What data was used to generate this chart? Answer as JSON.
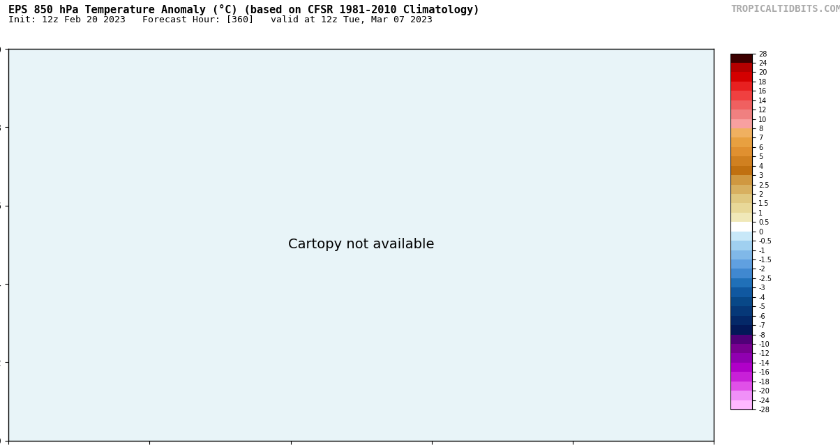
{
  "title_line1": "EPS 850 hPa Temperature Anomaly (°C) (based on CFSR 1981-2010 Climatology)",
  "title_line2": "Init: 12z Feb 20 2023   Forecast Hour: [360]   valid at 12z Tue, Mar 07 2023",
  "watermark": "TROPICALTIDBITS.COM",
  "colorbar_levels": [
    28,
    24,
    20,
    18,
    16,
    14,
    12,
    10,
    8,
    7,
    6,
    5,
    4,
    3,
    2.5,
    2,
    1.5,
    1,
    0.5,
    0,
    -0.5,
    -1,
    -1.5,
    -2,
    -2.5,
    -3,
    -4,
    -5,
    -6,
    -7,
    -8,
    -10,
    -12,
    -14,
    -16,
    -18,
    -20,
    -24,
    -28
  ],
  "colorbar_colors": [
    "#3d0000",
    "#7a0000",
    "#b40000",
    "#d40000",
    "#e82020",
    "#f04040",
    "#f06060",
    "#f08080",
    "#f8a0a0",
    "#f0b060",
    "#e8a040",
    "#e09030",
    "#d08020",
    "#c07010",
    "#d09840",
    "#d8b060",
    "#e0c880",
    "#e8d898",
    "#f0e8b8",
    "#ffffff",
    "#c8e8f8",
    "#a0d0f0",
    "#80b8e8",
    "#60a0e0",
    "#4088d0",
    "#2070b8",
    "#1058a0",
    "#084888",
    "#063878",
    "#042868",
    "#031858",
    "#500078",
    "#780090",
    "#9000b0",
    "#b000c8",
    "#c820d8",
    "#e050e8",
    "#f090f8",
    "#ffb8ff"
  ],
  "bg_color": "#ffffff",
  "map_bg": "#e8f4f8",
  "title_fontsize": 11,
  "subtitle_fontsize": 9.5,
  "watermark_fontsize": 10,
  "figsize": [
    12.04,
    6.38
  ],
  "dpi": 100
}
